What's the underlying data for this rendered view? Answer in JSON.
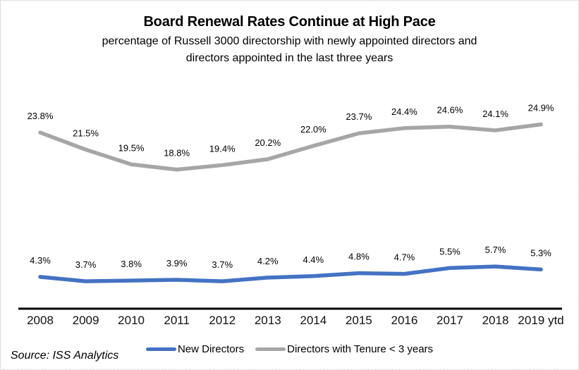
{
  "chart_data": {
    "type": "line",
    "title": "Board Renewal Rates Continue at High Pace",
    "subtitle_line1": "percentage of Russell 3000 directorship with newly appointed directors and",
    "subtitle_line2": "directors appointed in the last three years",
    "categories": [
      "2008",
      "2009",
      "2010",
      "2011",
      "2012",
      "2013",
      "2014",
      "2015",
      "2016",
      "2017",
      "2018",
      "2019 ytd"
    ],
    "series": [
      {
        "name": "New Directors",
        "color": "#4472C4",
        "values": [
          4.3,
          3.7,
          3.8,
          3.9,
          3.7,
          4.2,
          4.4,
          4.8,
          4.7,
          5.5,
          5.7,
          5.3
        ]
      },
      {
        "name": "Directors with Tenure < 3 years",
        "color": "#A6A6A6",
        "values": [
          23.8,
          21.5,
          19.5,
          18.8,
          19.4,
          20.2,
          22.0,
          23.7,
          24.4,
          24.6,
          24.1,
          24.9
        ]
      }
    ],
    "data_label_format": "percent_one_decimal",
    "axis_color": "#000000",
    "ylim": [
      0,
      30
    ],
    "gridlines": false,
    "legend_position": "bottom",
    "source": "Source: ISS Analytics"
  }
}
